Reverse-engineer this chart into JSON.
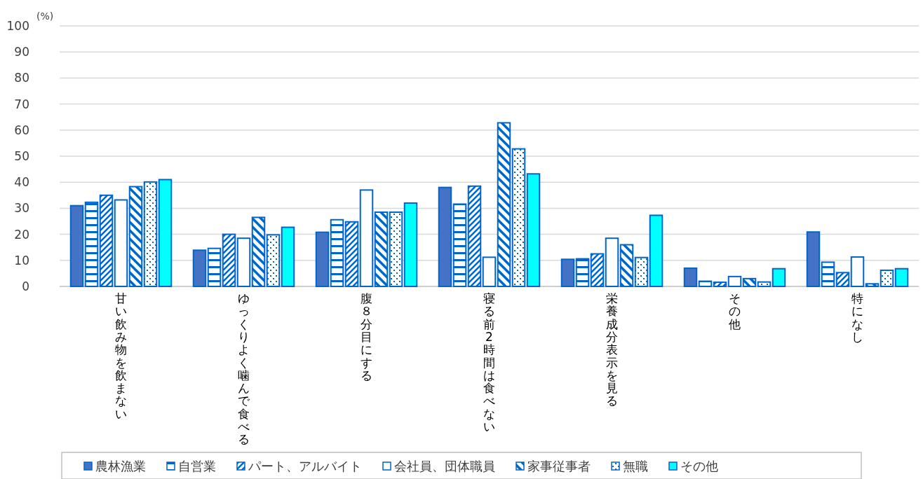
{
  "chart_data": {
    "type": "bar",
    "ylabel": "(%)",
    "categories": [
      "甘い飲み物を飲まない",
      "ゆっくりよく噛んで食べる",
      "腹８分目にする",
      "寝る前2時間は食べない",
      "栄養成分表示を見る",
      "その他",
      "特になし"
    ],
    "series": [
      {
        "name": "農林漁業",
        "color": "#4472c4",
        "values": [
          31,
          13.9,
          20.8,
          38,
          10.4,
          7,
          20.9
        ]
      },
      {
        "name": "自営業",
        "color": "#0066cc",
        "values": [
          32.3,
          14.6,
          25.6,
          31.6,
          10.6,
          2,
          9.3
        ]
      },
      {
        "name": "パート、アルバイト",
        "color": "#0066cc",
        "values": [
          35,
          20,
          24.8,
          38.5,
          12.5,
          1.6,
          5.3
        ]
      },
      {
        "name": "会社員、団体職員",
        "color": "#ffffff",
        "values": [
          33.2,
          18.5,
          37,
          11.2,
          18.5,
          3.8,
          11.3
        ]
      },
      {
        "name": "家事従事者",
        "color": "#0066cc",
        "values": [
          38.3,
          26.5,
          28.5,
          62.8,
          16,
          3,
          1
        ]
      },
      {
        "name": "無職",
        "color": "#0066cc",
        "values": [
          40.1,
          19.8,
          28.5,
          52.8,
          11.1,
          1.7,
          6.2
        ]
      },
      {
        "name": "その他",
        "color": "#00ffff",
        "values": [
          41,
          22.7,
          32,
          43.2,
          27.3,
          6.8,
          6.8
        ]
      }
    ],
    "ylim": [
      0,
      100
    ],
    "yticks": [
      0,
      10,
      20,
      30,
      40,
      50,
      60,
      70,
      80,
      90,
      100
    ],
    "grid": "y",
    "legend": "bottom"
  }
}
